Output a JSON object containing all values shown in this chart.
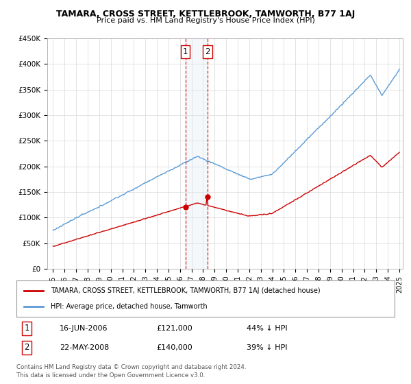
{
  "title": "TAMARA, CROSS STREET, KETTLEBROOK, TAMWORTH, B77 1AJ",
  "subtitle": "Price paid vs. HM Land Registry's House Price Index (HPI)",
  "legend_line1": "TAMARA, CROSS STREET, KETTLEBROOK, TAMWORTH, B77 1AJ (detached house)",
  "legend_line2": "HPI: Average price, detached house, Tamworth",
  "transaction1_label": "1",
  "transaction1_date": "16-JUN-2006",
  "transaction1_price": "£121,000",
  "transaction1_hpi": "44% ↓ HPI",
  "transaction2_label": "2",
  "transaction2_date": "22-MAY-2008",
  "transaction2_price": "£140,000",
  "transaction2_hpi": "39% ↓ HPI",
  "footnote1": "Contains HM Land Registry data © Crown copyright and database right 2024.",
  "footnote2": "This data is licensed under the Open Government Licence v3.0.",
  "hpi_color": "#5b9bd5",
  "price_color": "#cc0000",
  "marker_color": "#cc0000",
  "vline_color": "#cc0000",
  "highlight_color": "#dce9f5",
  "ylim": [
    0,
    450000
  ],
  "yticks": [
    0,
    50000,
    100000,
    150000,
    200000,
    250000,
    300000,
    350000,
    400000,
    450000
  ],
  "t1_year": 2006.458,
  "t2_year": 2008.375,
  "t1_price": 121000,
  "t2_price": 140000
}
